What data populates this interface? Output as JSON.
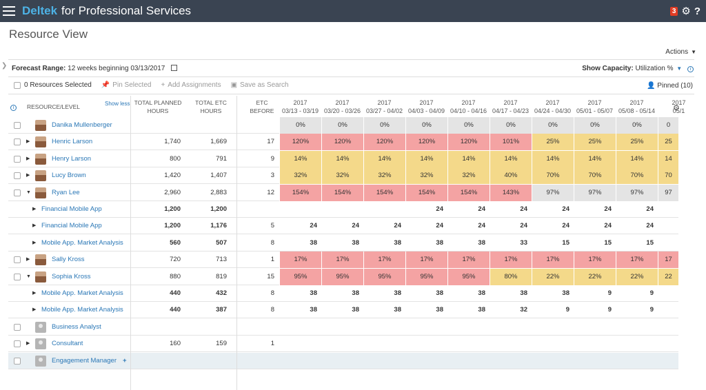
{
  "app": {
    "brand": "Deltek",
    "brand_sub": "for Professional Services",
    "notification_count": "3",
    "page_title": "Resource View",
    "actions_label": "Actions"
  },
  "forecast": {
    "label": "Forecast Range:",
    "value": "12 weeks beginning 03/13/2017",
    "capacity_label": "Show Capacity:",
    "capacity_value": "Utilization %"
  },
  "toolbar": {
    "selected": "0 Resources Selected",
    "pin": "Pin Selected",
    "add": "Add Assignments",
    "save": "Save as Search",
    "pinned": "Pinned (10)"
  },
  "headers": {
    "resource": "RESOURCE/LEVEL",
    "show_less": "Show less",
    "planned_1": "TOTAL PLANNED",
    "planned_2": "HOURS",
    "etc_1": "TOTAL ETC",
    "etc_2": "HOURS",
    "etcb_1": "ETC",
    "etcb_2": "BEFORE"
  },
  "weeks": [
    {
      "year": "2017",
      "range": "03/13 - 03/19"
    },
    {
      "year": "2017",
      "range": "03/20 - 03/26"
    },
    {
      "year": "2017",
      "range": "03/27 - 04/02"
    },
    {
      "year": "2017",
      "range": "04/03 - 04/09"
    },
    {
      "year": "2017",
      "range": "04/10 - 04/16"
    },
    {
      "year": "2017",
      "range": "04/17 - 04/23"
    },
    {
      "year": "2017",
      "range": "04/24 - 04/30"
    },
    {
      "year": "2017",
      "range": "05/01 - 05/07"
    },
    {
      "year": "2017",
      "range": "05/08 - 05/14"
    },
    {
      "year": "2017",
      "range": "05/1"
    }
  ],
  "rows": [
    {
      "kind": "person",
      "exp": "",
      "name": "Danika Mullenberger",
      "planned": "",
      "etc": "",
      "before": "",
      "cells": [
        "0%",
        "0%",
        "0%",
        "0%",
        "0%",
        "0%",
        "0%",
        "0%",
        "0%",
        "0"
      ],
      "colors": [
        "gray",
        "gray",
        "gray",
        "gray",
        "gray",
        "gray",
        "gray",
        "gray",
        "gray",
        "gray"
      ]
    },
    {
      "kind": "person",
      "exp": "▶",
      "name": "Henric Larson",
      "planned": "1,740",
      "etc": "1,669",
      "before": "17",
      "cells": [
        "120%",
        "120%",
        "120%",
        "120%",
        "120%",
        "101%",
        "25%",
        "25%",
        "25%",
        "25"
      ],
      "colors": [
        "red",
        "red",
        "red",
        "red",
        "red",
        "red",
        "yellow",
        "yellow",
        "yellow",
        "yellow"
      ]
    },
    {
      "kind": "person",
      "exp": "▶",
      "name": "Henry Larson",
      "planned": "800",
      "etc": "791",
      "before": "9",
      "cells": [
        "14%",
        "14%",
        "14%",
        "14%",
        "14%",
        "14%",
        "14%",
        "14%",
        "14%",
        "14"
      ],
      "colors": [
        "yellow",
        "yellow",
        "yellow",
        "yellow",
        "yellow",
        "yellow",
        "yellow",
        "yellow",
        "yellow",
        "yellow"
      ]
    },
    {
      "kind": "person",
      "exp": "▶",
      "name": "Lucy Brown",
      "planned": "1,420",
      "etc": "1,407",
      "before": "3",
      "cells": [
        "32%",
        "32%",
        "32%",
        "32%",
        "32%",
        "40%",
        "70%",
        "70%",
        "70%",
        "70"
      ],
      "colors": [
        "yellow",
        "yellow",
        "yellow",
        "yellow",
        "yellow",
        "yellow",
        "yellow",
        "yellow",
        "yellow",
        "yellow"
      ]
    },
    {
      "kind": "person",
      "exp": "▼",
      "name": "Ryan Lee",
      "planned": "2,960",
      "etc": "2,883",
      "before": "12",
      "cells": [
        "154%",
        "154%",
        "154%",
        "154%",
        "154%",
        "143%",
        "97%",
        "97%",
        "97%",
        "97"
      ],
      "colors": [
        "red",
        "red",
        "red",
        "red",
        "red",
        "red",
        "lgray",
        "lgray",
        "lgray",
        "lgray"
      ]
    },
    {
      "kind": "project",
      "exp": "▶",
      "name": "Financial Mobile App",
      "planned": "1,200",
      "etc": "1,200",
      "before": "",
      "cells": [
        "",
        "",
        "",
        "24",
        "24",
        "24",
        "24",
        "24",
        "24",
        ""
      ],
      "colors": []
    },
    {
      "kind": "project",
      "exp": "▶",
      "name": "Financial Mobile App",
      "planned": "1,200",
      "etc": "1,176",
      "before": "5",
      "cells": [
        "24",
        "24",
        "24",
        "24",
        "24",
        "24",
        "24",
        "24",
        "24",
        ""
      ],
      "colors": []
    },
    {
      "kind": "project",
      "exp": "▶",
      "name": "Mobile App. Market Analysis",
      "planned": "560",
      "etc": "507",
      "before": "8",
      "cells": [
        "38",
        "38",
        "38",
        "38",
        "38",
        "33",
        "15",
        "15",
        "15",
        ""
      ],
      "colors": []
    },
    {
      "kind": "person",
      "exp": "▶",
      "name": "Sally Kross",
      "planned": "720",
      "etc": "713",
      "before": "1",
      "cells": [
        "17%",
        "17%",
        "17%",
        "17%",
        "17%",
        "17%",
        "17%",
        "17%",
        "17%",
        "17"
      ],
      "colors": [
        "red",
        "red",
        "red",
        "red",
        "red",
        "red",
        "red",
        "red",
        "red",
        "red"
      ]
    },
    {
      "kind": "person",
      "exp": "▼",
      "name": "Sophia Kross",
      "planned": "880",
      "etc": "819",
      "before": "15",
      "cells": [
        "95%",
        "95%",
        "95%",
        "95%",
        "95%",
        "80%",
        "22%",
        "22%",
        "22%",
        "22"
      ],
      "colors": [
        "red",
        "red",
        "red",
        "red",
        "red",
        "yellow",
        "yellow",
        "yellow",
        "yellow",
        "yellow"
      ]
    },
    {
      "kind": "project",
      "exp": "▶",
      "name": "Mobile App. Market Analysis",
      "planned": "440",
      "etc": "432",
      "before": "8",
      "cells": [
        "38",
        "38",
        "38",
        "38",
        "38",
        "38",
        "38",
        "9",
        "9",
        ""
      ],
      "colors": []
    },
    {
      "kind": "project",
      "exp": "▶",
      "name": "Mobile App. Market Analysis",
      "planned": "440",
      "etc": "387",
      "before": "8",
      "cells": [
        "38",
        "38",
        "38",
        "38",
        "38",
        "32",
        "9",
        "9",
        "9",
        ""
      ],
      "colors": []
    },
    {
      "kind": "role",
      "exp": "",
      "name": "Business Analyst",
      "planned": "",
      "etc": "",
      "before": "",
      "cells": [],
      "colors": []
    },
    {
      "kind": "role",
      "exp": "▶",
      "name": "Consultant",
      "planned": "160",
      "etc": "159",
      "before": "1",
      "cells": [],
      "colors": []
    },
    {
      "kind": "role",
      "exp": "",
      "name": "Engagement Manager",
      "planned": "",
      "etc": "",
      "before": "",
      "cells": [],
      "colors": [],
      "plus": "+"
    }
  ]
}
